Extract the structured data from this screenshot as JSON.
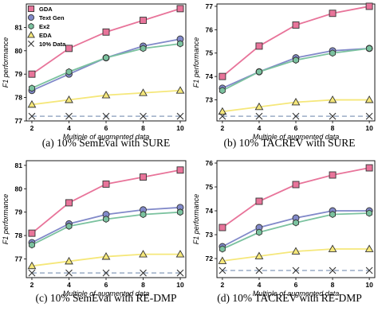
{
  "chart_data": [
    {
      "type": "line",
      "caption": "(a) 10% SemEval with SURE",
      "xlabel": "Multiple of augmented data",
      "ylabel": "F1 performance",
      "x": [
        2,
        4,
        6,
        8,
        10
      ],
      "xlim": [
        1.7,
        10.3
      ],
      "ylim": [
        77.0,
        82.0
      ],
      "yticks": [
        77,
        78,
        79,
        80,
        81
      ],
      "grid": false,
      "legend": "left",
      "series": [
        {
          "name": "GDA",
          "color": "#e8749a",
          "marker": "square",
          "values": [
            79.0,
            80.1,
            80.8,
            81.3,
            81.8
          ]
        },
        {
          "name": "Text Gen",
          "color": "#8189c9",
          "marker": "circle",
          "values": [
            78.3,
            79.0,
            79.7,
            80.2,
            80.5
          ]
        },
        {
          "name": "Ex2",
          "color": "#7bc29f",
          "marker": "hexagon",
          "values": [
            78.4,
            79.1,
            79.7,
            80.1,
            80.3
          ]
        },
        {
          "name": "EDA",
          "color": "#f5e77a",
          "marker": "triangle",
          "values": [
            77.7,
            77.9,
            78.1,
            78.2,
            78.3
          ]
        },
        {
          "name": "10% Data",
          "color": "#9aacc5",
          "marker": "x",
          "dashed": true,
          "values": [
            77.2,
            77.2,
            77.2,
            77.2,
            77.2
          ]
        }
      ]
    },
    {
      "type": "line",
      "caption": "(b) 10% TACREV with SURE",
      "xlabel": "Multiple of augmented data",
      "ylabel": "F1 performance",
      "x": [
        2,
        4,
        6,
        8,
        10
      ],
      "xlim": [
        1.7,
        10.3
      ],
      "ylim": [
        72.1,
        77.1
      ],
      "yticks": [
        73,
        74,
        75,
        76,
        77
      ],
      "grid": false,
      "series": [
        {
          "name": "GDA",
          "color": "#e8749a",
          "marker": "square",
          "values": [
            74.0,
            75.3,
            76.2,
            76.7,
            77.0
          ]
        },
        {
          "name": "Text Gen",
          "color": "#8189c9",
          "marker": "circle",
          "values": [
            73.5,
            74.2,
            74.8,
            75.1,
            75.2
          ]
        },
        {
          "name": "Ex2",
          "color": "#7bc29f",
          "marker": "hexagon",
          "values": [
            73.4,
            74.2,
            74.7,
            75.0,
            75.2
          ]
        },
        {
          "name": "EDA",
          "color": "#f5e77a",
          "marker": "triangle",
          "values": [
            72.5,
            72.7,
            72.9,
            73.0,
            73.0
          ]
        },
        {
          "name": "10% Data",
          "color": "#9aacc5",
          "marker": "x",
          "dashed": true,
          "values": [
            72.3,
            72.3,
            72.3,
            72.3,
            72.3
          ]
        }
      ]
    },
    {
      "type": "line",
      "caption": "(c) 10% SemEval with RE-DMP",
      "xlabel": "Multiple of augmented data",
      "ylabel": "F1 performance",
      "x": [
        2,
        4,
        6,
        8,
        10
      ],
      "xlim": [
        1.7,
        10.3
      ],
      "ylim": [
        76.2,
        81.2
      ],
      "yticks": [
        77,
        78,
        79,
        80,
        81
      ],
      "grid": false,
      "series": [
        {
          "name": "GDA",
          "color": "#e8749a",
          "marker": "square",
          "values": [
            78.1,
            79.4,
            80.2,
            80.5,
            80.8
          ]
        },
        {
          "name": "Text Gen",
          "color": "#8189c9",
          "marker": "circle",
          "values": [
            77.7,
            78.5,
            78.9,
            79.1,
            79.2
          ]
        },
        {
          "name": "Ex2",
          "color": "#7bc29f",
          "marker": "hexagon",
          "values": [
            77.6,
            78.4,
            78.7,
            78.9,
            79.0
          ]
        },
        {
          "name": "EDA",
          "color": "#f5e77a",
          "marker": "triangle",
          "values": [
            76.7,
            76.9,
            77.1,
            77.2,
            77.2
          ]
        },
        {
          "name": "10% Data",
          "color": "#9aacc5",
          "marker": "x",
          "dashed": true,
          "values": [
            76.4,
            76.4,
            76.4,
            76.4,
            76.4
          ]
        }
      ]
    },
    {
      "type": "line",
      "caption": "(d) 10% TACREV with RE-DMP",
      "xlabel": "Multiple of augmented data",
      "ylabel": "F1 performance",
      "x": [
        2,
        4,
        6,
        8,
        10
      ],
      "xlim": [
        1.7,
        10.3
      ],
      "ylim": [
        71.2,
        76.1
      ],
      "yticks": [
        72,
        73,
        74,
        75,
        76
      ],
      "grid": false,
      "series": [
        {
          "name": "GDA",
          "color": "#e8749a",
          "marker": "square",
          "values": [
            73.3,
            74.4,
            75.1,
            75.5,
            75.8
          ]
        },
        {
          "name": "Text Gen",
          "color": "#8189c9",
          "marker": "circle",
          "values": [
            72.5,
            73.3,
            73.7,
            74.0,
            74.0
          ]
        },
        {
          "name": "Ex2",
          "color": "#7bc29f",
          "marker": "hexagon",
          "values": [
            72.4,
            73.1,
            73.5,
            73.85,
            73.9
          ]
        },
        {
          "name": "EDA",
          "color": "#f5e77a",
          "marker": "triangle",
          "values": [
            71.9,
            72.1,
            72.3,
            72.4,
            72.4
          ]
        },
        {
          "name": "10% Data",
          "color": "#9aacc5",
          "marker": "x",
          "dashed": true,
          "values": [
            71.5,
            71.5,
            71.5,
            71.5,
            71.5
          ]
        }
      ]
    }
  ]
}
